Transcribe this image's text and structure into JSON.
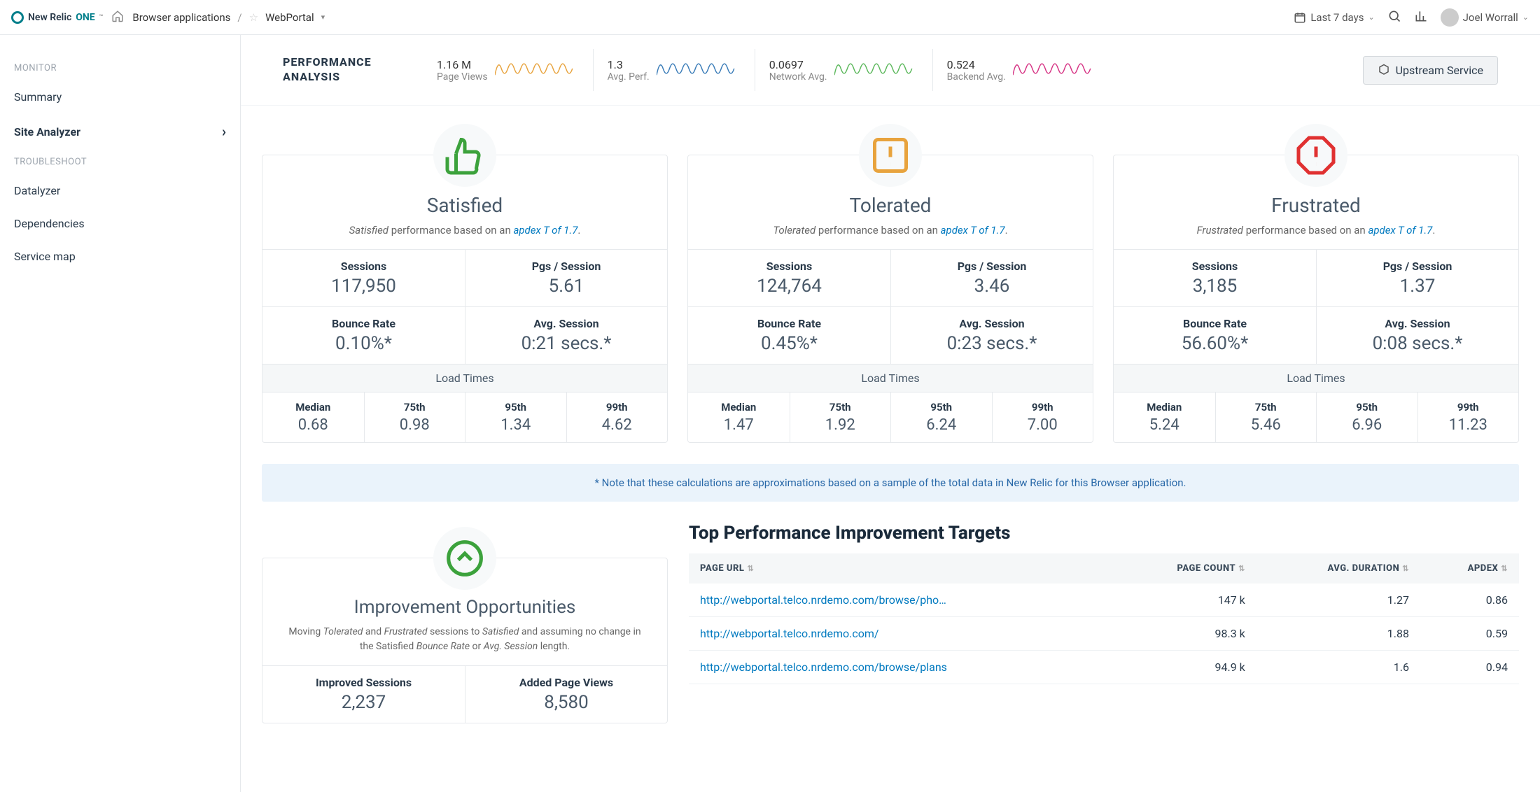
{
  "brand": {
    "name": "New Relic",
    "one": "ONE",
    "tm": "™"
  },
  "breadcrumb": {
    "root": "Browser applications",
    "current": "WebPortal"
  },
  "header": {
    "time_range": "Last 7 days",
    "user_name": "Joel Worrall"
  },
  "sidebar": {
    "groups": [
      {
        "heading": "MONITOR",
        "items": [
          {
            "label": "Summary",
            "active": false
          },
          {
            "label": "Site Analyzer",
            "active": true,
            "expandable": true
          }
        ]
      },
      {
        "heading": "TROUBLESHOOT",
        "items": [
          {
            "label": "Datalyzer"
          },
          {
            "label": "Dependencies"
          },
          {
            "label": "Service map"
          }
        ]
      }
    ]
  },
  "performance_analysis": {
    "title_line1": "PERFORMANCE",
    "title_line2": "ANALYSIS",
    "sparks": [
      {
        "value": "1.16 M",
        "label": "Page Views",
        "color": "#e8a33d"
      },
      {
        "value": "1.3",
        "label": "Avg. Perf.",
        "color": "#3a7cb8"
      },
      {
        "value": "0.0697",
        "label": "Network Avg.",
        "color": "#5cb85c"
      },
      {
        "value": "0.524",
        "label": "Backend Avg.",
        "color": "#d63384"
      }
    ],
    "upstream_btn": "Upstream Service"
  },
  "cards": [
    {
      "id": "satisfied",
      "icon_color": "#3ca23c",
      "title": "Satisfied",
      "sub_prefix_em": "Satisfied",
      "sub_mid": " performance based on an ",
      "sub_link": "apdex T of 1.7",
      "sub_suffix": ".",
      "sessions": "117,950",
      "pgs_session": "5.61",
      "bounce_rate": "0.10%*",
      "avg_session": "0:21 secs.*",
      "load": {
        "median": "0.68",
        "p75": "0.98",
        "p95": "1.34",
        "p99": "4.62"
      }
    },
    {
      "id": "tolerated",
      "icon_color": "#e8a33d",
      "title": "Tolerated",
      "sub_prefix_em": "Tolerated",
      "sub_mid": " performance based on an ",
      "sub_link": "apdex T of 1.7",
      "sub_suffix": ".",
      "sessions": "124,764",
      "pgs_session": "3.46",
      "bounce_rate": "0.45%*",
      "avg_session": "0:23 secs.*",
      "load": {
        "median": "1.47",
        "p75": "1.92",
        "p95": "6.24",
        "p99": "7.00"
      }
    },
    {
      "id": "frustrated",
      "icon_color": "#e03131",
      "title": "Frustrated",
      "sub_prefix_em": "Frustrated",
      "sub_mid": " performance based on an ",
      "sub_link": "apdex T of 1.7",
      "sub_suffix": ".",
      "sessions": "3,185",
      "pgs_session": "1.37",
      "bounce_rate": "56.60%*",
      "avg_session": "0:08 secs.*",
      "load": {
        "median": "5.24",
        "p75": "5.46",
        "p95": "6.96",
        "p99": "11.23"
      }
    }
  ],
  "labels": {
    "sessions": "Sessions",
    "pgs_session": "Pgs / Session",
    "bounce_rate": "Bounce Rate",
    "avg_session": "Avg. Session",
    "load_times": "Load Times",
    "median": "Median",
    "p75": "75th",
    "p95": "95th",
    "p99": "99th"
  },
  "note": "* Note that these calculations are approximations based on a sample of the total data in New Relic for this Browser application.",
  "improve": {
    "title": "Improvement Opportunities",
    "sub_1": "Moving ",
    "sub_em1": "Tolerated",
    "sub_2": " and ",
    "sub_em2": "Frustrated",
    "sub_3": " sessions to ",
    "sub_em3": "Satisfied",
    "sub_4": " and assuming no change in the Satisfied ",
    "sub_em4": "Bounce Rate",
    "sub_5": " or ",
    "sub_em5": "Avg. Session",
    "sub_6": " length.",
    "improved_sessions_lbl": "Improved Sessions",
    "improved_sessions": "2,237",
    "added_pv_lbl": "Added Page Views",
    "added_pv": "8,580",
    "icon_color": "#3ca23c"
  },
  "targets": {
    "title": "Top Performance Improvement Targets",
    "columns": {
      "url": "PAGE URL",
      "count": "PAGE COUNT",
      "duration": "AVG. DURATION",
      "apdex": "APDEX"
    },
    "rows": [
      {
        "url": "http://webportal.telco.nrdemo.com/browse/pho…",
        "count": "147 k",
        "duration": "1.27",
        "apdex": "0.86"
      },
      {
        "url": "http://webportal.telco.nrdemo.com/",
        "count": "98.3 k",
        "duration": "1.88",
        "apdex": "0.59"
      },
      {
        "url": "http://webportal.telco.nrdemo.com/browse/plans",
        "count": "94.9 k",
        "duration": "1.6",
        "apdex": "0.94"
      }
    ]
  }
}
